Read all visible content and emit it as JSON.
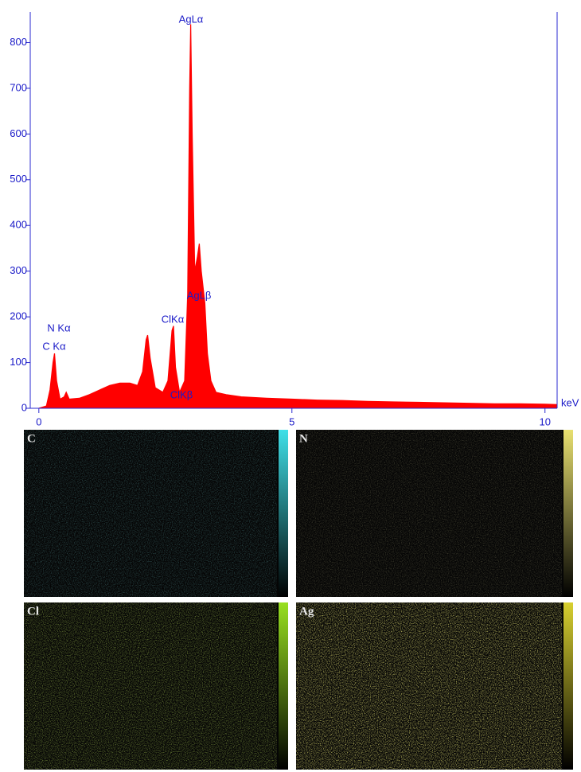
{
  "chart_data": {
    "type": "area",
    "color": "#ff0000",
    "x_label": "keV",
    "xlim": [
      -0.17,
      10.24
    ],
    "ylim": [
      0,
      867
    ],
    "xticks": [
      0,
      5,
      10
    ],
    "yticks": [
      0,
      100,
      200,
      300,
      400,
      500,
      600,
      700,
      800
    ],
    "x": [
      0.0,
      0.15,
      0.22,
      0.28,
      0.31,
      0.35,
      0.42,
      0.5,
      0.54,
      0.6,
      0.8,
      1.0,
      1.2,
      1.4,
      1.6,
      1.8,
      1.95,
      2.05,
      2.12,
      2.15,
      2.2,
      2.3,
      2.45,
      2.55,
      2.63,
      2.66,
      2.7,
      2.78,
      2.88,
      2.94,
      2.98,
      3.0,
      3.03,
      3.08,
      3.13,
      3.17,
      3.21,
      3.28,
      3.33,
      3.4,
      3.5,
      3.7,
      4.0,
      4.5,
      5.0,
      5.5,
      6.0,
      6.5,
      7.0,
      7.5,
      8.0,
      8.5,
      9.0,
      9.5,
      10.0,
      10.24
    ],
    "values": [
      0,
      5,
      40,
      100,
      120,
      60,
      20,
      25,
      35,
      20,
      22,
      30,
      40,
      50,
      55,
      55,
      50,
      80,
      150,
      160,
      110,
      45,
      35,
      60,
      170,
      180,
      90,
      35,
      60,
      250,
      700,
      840,
      600,
      300,
      330,
      360,
      300,
      230,
      120,
      60,
      35,
      30,
      25,
      22,
      20,
      18,
      17,
      15,
      14,
      13,
      12,
      11,
      10,
      10,
      9,
      8
    ],
    "annotations": [
      "AgLα",
      "AgLβ",
      "ClKα",
      "ClKβ",
      "N Kα",
      "C Kα"
    ]
  },
  "maps": [
    {
      "label": "C",
      "color": "#40e0e8"
    },
    {
      "label": "N",
      "color": "#e8e070"
    },
    {
      "label": "Cl",
      "color": "#98e020"
    },
    {
      "label": "Ag",
      "color": "#d8d030"
    }
  ]
}
